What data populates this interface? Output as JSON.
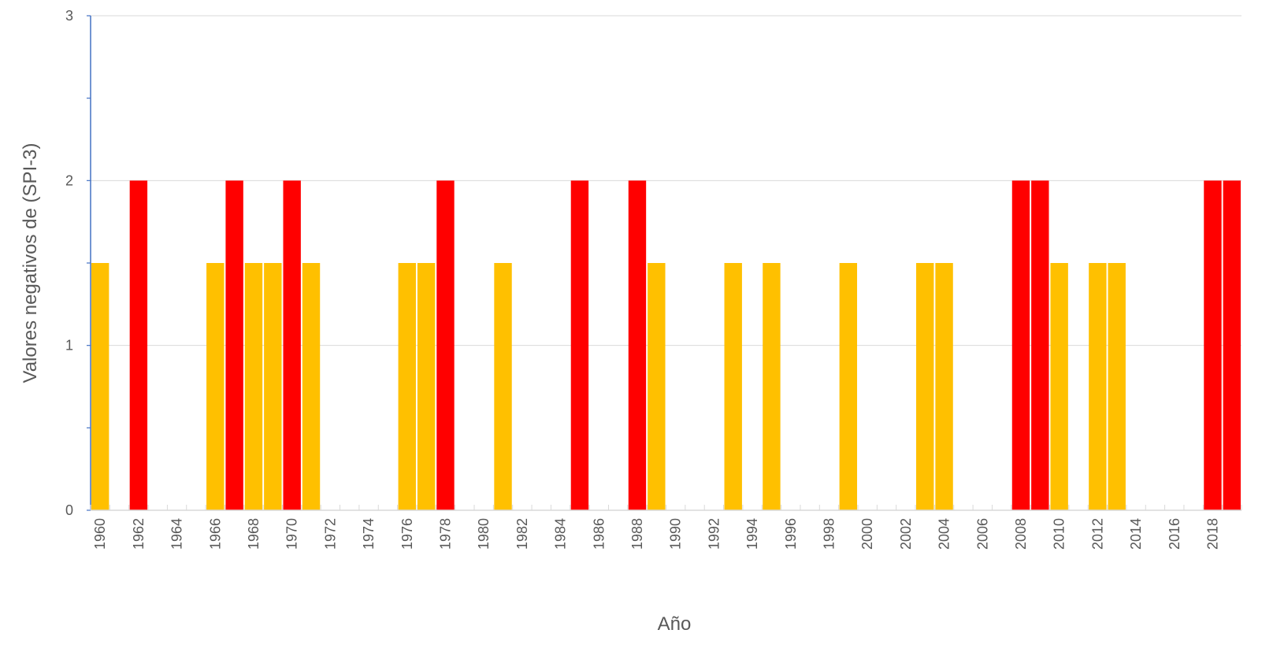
{
  "chart_data": {
    "type": "bar",
    "title": "",
    "xlabel": "Año",
    "ylabel": "Valores negativos de (SPI-3)",
    "ylim": [
      0,
      3
    ],
    "yticks": [
      0,
      1,
      2,
      3
    ],
    "grid": true,
    "x_start_year": 1960,
    "x_end_year": 2019,
    "x_tick_labels": [
      "1960",
      "1962",
      "1964",
      "1966",
      "1968",
      "1970",
      "1972",
      "1974",
      "1976",
      "1978",
      "1980",
      "1982",
      "1984",
      "1986",
      "1988",
      "1990",
      "1992",
      "1994",
      "1996",
      "1998",
      "2000",
      "2002",
      "2004",
      "2006",
      "2008",
      "2010",
      "2012",
      "2014",
      "2016",
      "2018"
    ],
    "colors": {
      "value_1_5": "#FFC000",
      "value_2": "#FF0000",
      "axis": "#4472C4",
      "grid": "#D9D9D9"
    },
    "bars": [
      {
        "year": 1960,
        "value": 1.5
      },
      {
        "year": 1962,
        "value": 2
      },
      {
        "year": 1966,
        "value": 1.5
      },
      {
        "year": 1967,
        "value": 2
      },
      {
        "year": 1968,
        "value": 1.5
      },
      {
        "year": 1969,
        "value": 1.5
      },
      {
        "year": 1970,
        "value": 2
      },
      {
        "year": 1971,
        "value": 1.5
      },
      {
        "year": 1976,
        "value": 1.5
      },
      {
        "year": 1977,
        "value": 1.5
      },
      {
        "year": 1978,
        "value": 2
      },
      {
        "year": 1981,
        "value": 1.5
      },
      {
        "year": 1985,
        "value": 2
      },
      {
        "year": 1988,
        "value": 2
      },
      {
        "year": 1989,
        "value": 1.5
      },
      {
        "year": 1993,
        "value": 1.5
      },
      {
        "year": 1995,
        "value": 1.5
      },
      {
        "year": 1999,
        "value": 1.5
      },
      {
        "year": 2003,
        "value": 1.5
      },
      {
        "year": 2004,
        "value": 1.5
      },
      {
        "year": 2008,
        "value": 2
      },
      {
        "year": 2009,
        "value": 2
      },
      {
        "year": 2010,
        "value": 1.5
      },
      {
        "year": 2012,
        "value": 1.5
      },
      {
        "year": 2013,
        "value": 1.5
      },
      {
        "year": 2018,
        "value": 2
      },
      {
        "year": 2019,
        "value": 2
      }
    ]
  }
}
